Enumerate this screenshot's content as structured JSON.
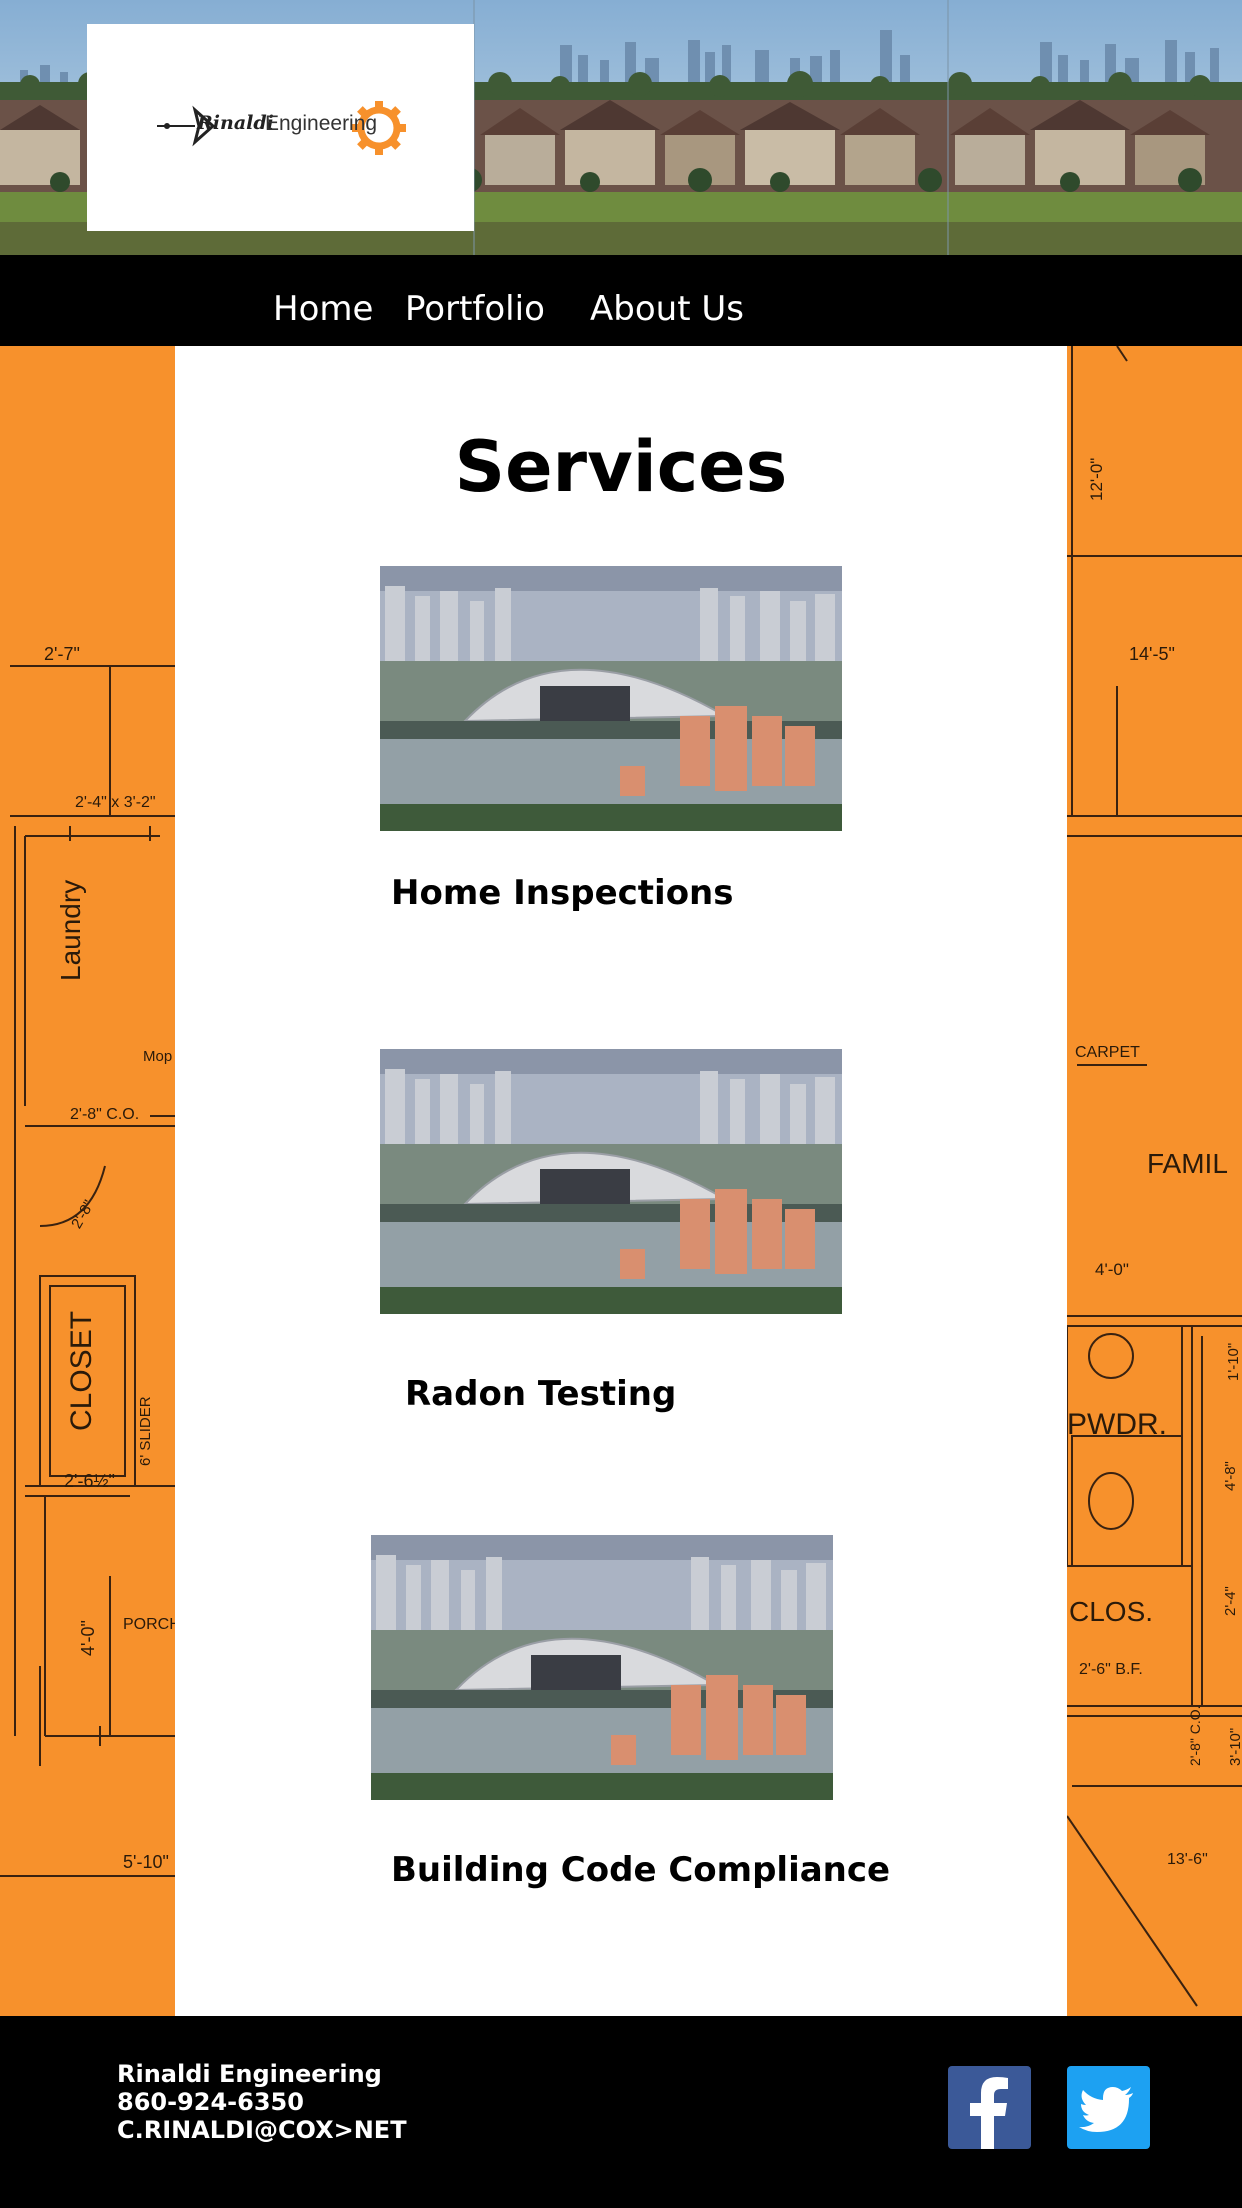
{
  "brand": {
    "logo_word_1": "Rinaldi",
    "logo_word_2": "Engineering"
  },
  "nav": {
    "items": [
      {
        "label": "Home"
      },
      {
        "label": "Portfolio"
      },
      {
        "label": "About Us"
      }
    ]
  },
  "main": {
    "title": "Services",
    "services": [
      {
        "title": "Home Inspections"
      },
      {
        "title": "Radon Testing"
      },
      {
        "title": "Building Code Compliance"
      }
    ]
  },
  "blueprint_left": {
    "labels": [
      "2'-7\"",
      "2'-4\" x 3'-2\"",
      "Laundry",
      "Mop",
      "2'-8\" C.O.",
      "2'-8\"",
      "CLOSET",
      "6' SLIDER",
      "2'-6½\"",
      "4'-0\"",
      "PORCH",
      "5'-10\""
    ]
  },
  "blueprint_right": {
    "labels": [
      "12'-0\"",
      "14'-5\"",
      "CARPET",
      "FAMIL",
      "4'-0\"",
      "1'-10\"",
      "PWDR.",
      "4'-8\"",
      "CLOS.",
      "2'-4\"",
      "2'-6\" B.F.",
      "2'-8\" C.O.",
      "3'-10\"",
      "13'-6\""
    ]
  },
  "footer": {
    "company": "Rinaldi Engineering",
    "phone": "860-924-6350",
    "email": "C.RINALDI@COX>NET",
    "social": [
      {
        "icon": "facebook-icon",
        "color": "#3b5998"
      },
      {
        "icon": "twitter-icon",
        "color": "#1da1f2"
      }
    ]
  },
  "colors": {
    "accent_orange": "#f7912c",
    "nav_bg": "#000000"
  }
}
